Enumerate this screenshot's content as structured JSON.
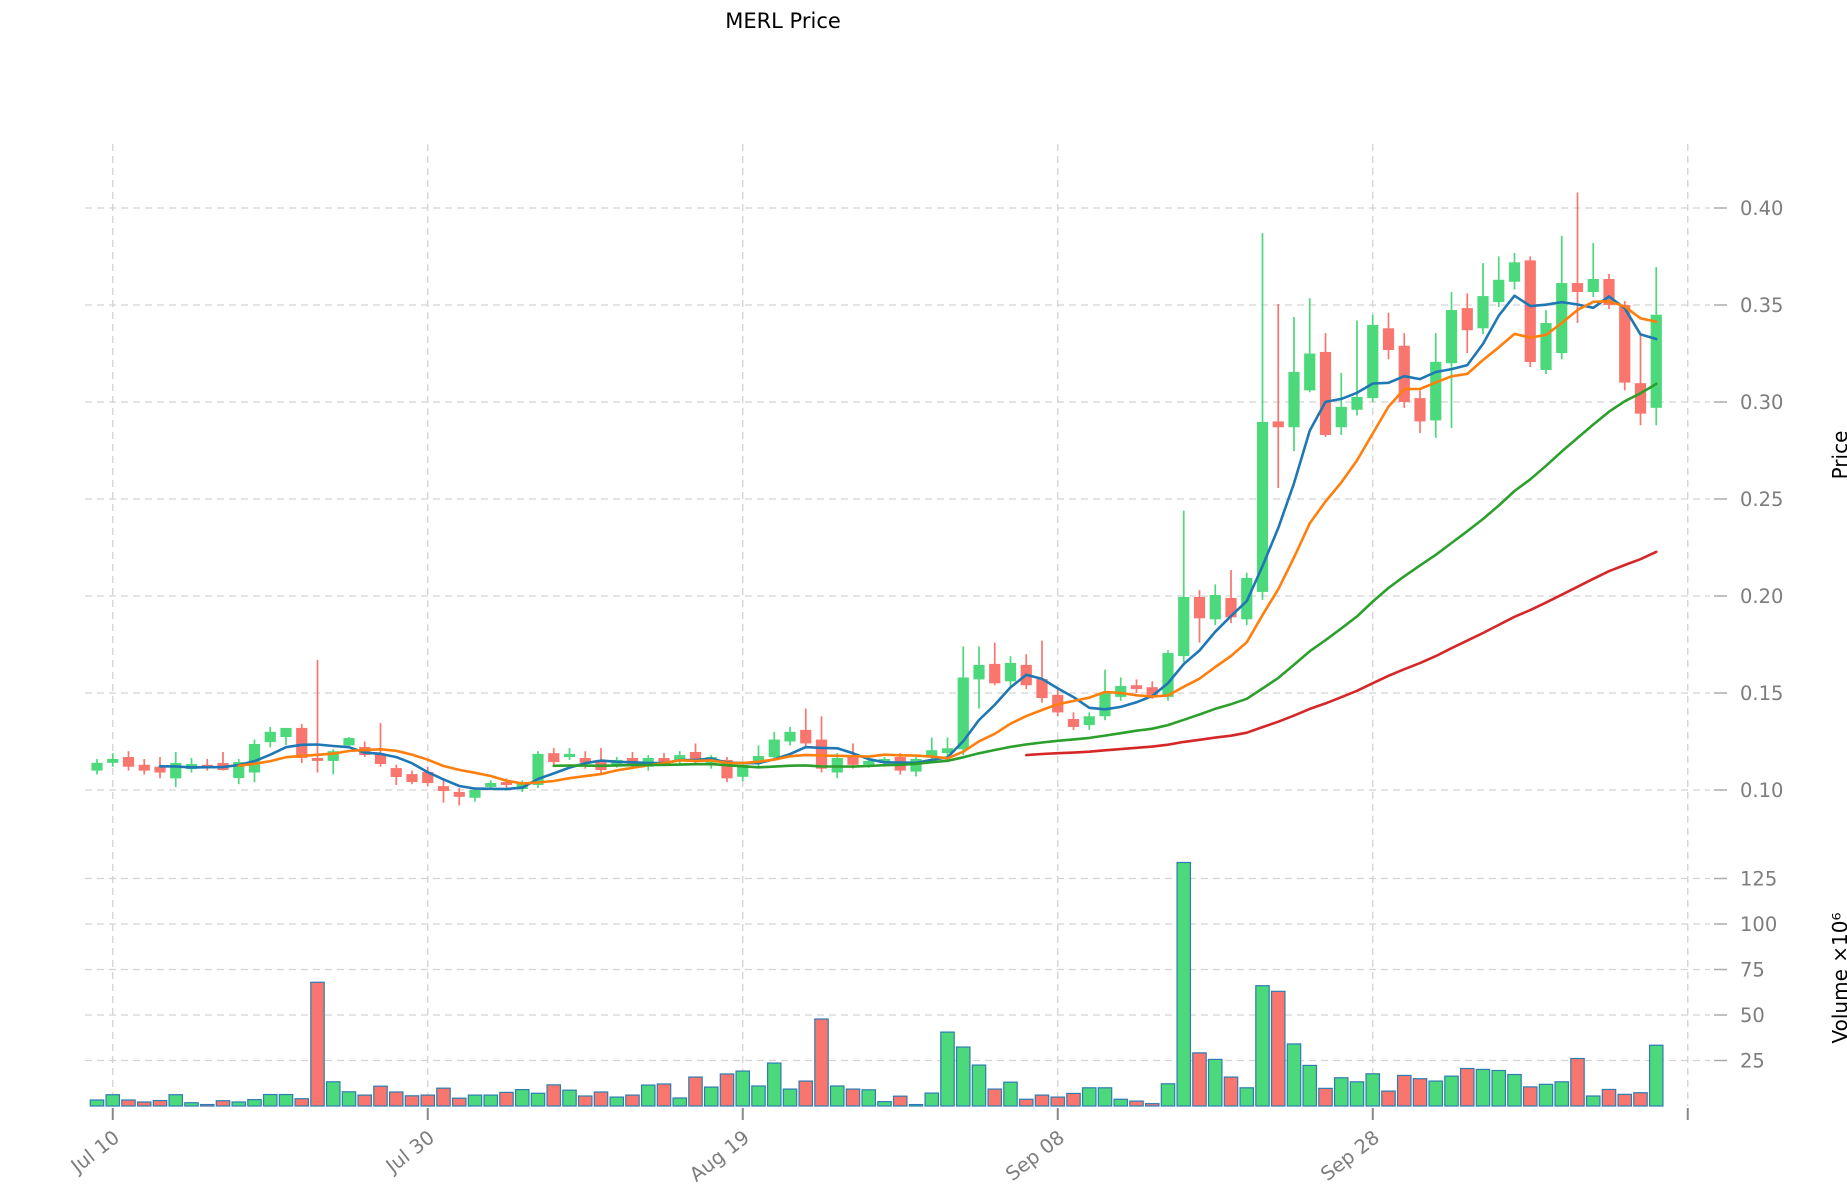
{
  "title": "MERL Price",
  "price_axis": {
    "label": "Price",
    "ticks": [
      0.1,
      0.15,
      0.2,
      0.25,
      0.3,
      0.35,
      0.4
    ],
    "tick_labels": [
      "0.10",
      "0.15",
      "0.20",
      "0.25",
      "0.30",
      "0.35",
      "0.40"
    ]
  },
  "volume_axis": {
    "label_full": "Volume ×10⁶",
    "ticks_millions": [
      25,
      50,
      75,
      100,
      125
    ],
    "tick_labels": [
      "25",
      "50",
      "75",
      "100",
      "125"
    ]
  },
  "x_axis": {
    "tick_labels": [
      "Jul 10",
      "Jul 30",
      "Aug 19",
      "Sep 08",
      "Sep 28"
    ],
    "tick_day_indices": [
      1,
      21,
      41,
      61,
      81
    ],
    "unlabeled_gridline_index": 101
  },
  "colors": {
    "up": "#4cd97b",
    "down": "#f8766d",
    "volume_edge": "#2d7db3",
    "grid": "#d3d3d3",
    "tick_text": "#7d7d7d",
    "ma": [
      "#1f77b4",
      "#ff7f0e",
      "#2ca02c",
      "#d62728"
    ]
  },
  "chart_data": {
    "type": "candlestick",
    "title": "MERL Price",
    "ylabel_price": "Price",
    "ylabel_volume": "Volume ×10⁶",
    "num_days": 100,
    "grid": "dashed",
    "legend": "none",
    "x_tick_labels": [
      "Jul 10",
      "Jul 30",
      "Aug 19",
      "Sep 08",
      "Sep 28"
    ],
    "price_ylim": [
      0.085,
      0.425
    ],
    "volume_ylim_millions": [
      0,
      140
    ],
    "moving_averages": [
      {
        "name": "SMA5",
        "window": 5,
        "color": "#1f77b4"
      },
      {
        "name": "SMA10",
        "window": 10,
        "color": "#ff7f0e"
      },
      {
        "name": "SMA30",
        "window": 30,
        "color": "#2ca02c"
      },
      {
        "name": "SMA60",
        "window": 60,
        "color": "#d62728"
      }
    ],
    "candles": {
      "open": [
        0.11,
        0.114,
        0.117,
        0.113,
        0.112,
        0.106,
        0.1108,
        0.113,
        0.1139,
        0.1062,
        0.109,
        0.1247,
        0.1273,
        0.132,
        0.1165,
        0.115,
        0.123,
        0.1222,
        0.1185,
        0.1113,
        0.1082,
        0.1093,
        0.102,
        0.099,
        0.096,
        0.1016,
        0.1041,
        0.1005,
        0.1026,
        0.119,
        0.117,
        0.1165,
        0.1155,
        0.113,
        0.1165,
        0.112,
        0.1165,
        0.1155,
        0.1196,
        0.114,
        0.1155,
        0.1068,
        0.1145,
        0.117,
        0.125,
        0.131,
        0.126,
        0.109,
        0.118,
        0.113,
        0.114,
        0.117,
        0.1095,
        0.117,
        0.119,
        0.121,
        0.157,
        0.165,
        0.156,
        0.1645,
        0.1572,
        0.149,
        0.1366,
        0.1335,
        0.138,
        0.148,
        0.154,
        0.153,
        0.148,
        0.169,
        0.1995,
        0.188,
        0.199,
        0.188,
        0.2021,
        0.29,
        0.287,
        0.306,
        0.3258,
        0.287,
        0.296,
        0.302,
        0.338,
        0.329,
        0.302,
        0.2905,
        0.32,
        0.3484,
        0.338,
        0.3515,
        0.362,
        0.373,
        0.3165,
        0.3252,
        0.3613,
        0.3567,
        0.3634,
        0.35,
        0.3097,
        0.297
      ],
      "high": [
        0.116,
        0.119,
        0.12,
        0.116,
        0.117,
        0.1196,
        0.1165,
        0.116,
        0.1196,
        0.116,
        0.126,
        0.1325,
        0.132,
        0.134,
        0.167,
        0.121,
        0.1273,
        0.125,
        0.1345,
        0.113,
        0.11,
        0.112,
        0.106,
        0.101,
        0.101,
        0.105,
        0.106,
        0.105,
        0.12,
        0.1216,
        0.1216,
        0.12,
        0.1216,
        0.117,
        0.1196,
        0.118,
        0.119,
        0.12,
        0.124,
        0.118,
        0.117,
        0.114,
        0.123,
        0.13,
        0.1325,
        0.142,
        0.138,
        0.119,
        0.124,
        0.116,
        0.117,
        0.119,
        0.117,
        0.127,
        0.127,
        0.174,
        0.174,
        0.176,
        0.169,
        0.17,
        0.177,
        0.153,
        0.14,
        0.14,
        0.162,
        0.158,
        0.157,
        0.156,
        0.172,
        0.244,
        0.203,
        0.206,
        0.2134,
        0.212,
        0.387,
        0.3505,
        0.3438,
        0.3535,
        0.3355,
        0.315,
        0.342,
        0.345,
        0.346,
        0.3355,
        0.306,
        0.3355,
        0.3567,
        0.356,
        0.3716,
        0.375,
        0.3768,
        0.375,
        0.3474,
        0.3856,
        0.408,
        0.382,
        0.366,
        0.352,
        0.3355,
        0.3695
      ],
      "low": [
        0.108,
        0.112,
        0.11,
        0.108,
        0.106,
        0.1015,
        0.109,
        0.11,
        0.11,
        0.103,
        0.104,
        0.122,
        0.1232,
        0.1139,
        0.109,
        0.108,
        0.1216,
        0.117,
        0.112,
        0.1026,
        0.103,
        0.102,
        0.0935,
        0.092,
        0.094,
        0.1,
        0.101,
        0.099,
        0.101,
        0.112,
        0.1155,
        0.111,
        0.108,
        0.1115,
        0.111,
        0.11,
        0.113,
        0.1135,
        0.1135,
        0.111,
        0.104,
        0.1045,
        0.112,
        0.115,
        0.123,
        0.122,
        0.109,
        0.106,
        0.111,
        0.1115,
        0.112,
        0.108,
        0.107,
        0.115,
        0.117,
        0.118,
        0.142,
        0.154,
        0.153,
        0.152,
        0.145,
        0.138,
        0.131,
        0.131,
        0.136,
        0.146,
        0.15,
        0.147,
        0.146,
        0.166,
        0.176,
        0.185,
        0.186,
        0.185,
        0.198,
        0.2557,
        0.2747,
        0.305,
        0.282,
        0.283,
        0.293,
        0.3,
        0.322,
        0.297,
        0.284,
        0.2815,
        0.2866,
        0.3252,
        0.335,
        0.349,
        0.358,
        0.318,
        0.3144,
        0.322,
        0.3407,
        0.354,
        0.348,
        0.306,
        0.288,
        0.288
      ],
      "close": [
        0.114,
        0.116,
        0.112,
        0.11,
        0.109,
        0.1139,
        0.1134,
        0.1125,
        0.1103,
        0.1144,
        0.1237,
        0.13,
        0.132,
        0.1165,
        0.115,
        0.12,
        0.1268,
        0.118,
        0.1134,
        0.1067,
        0.1041,
        0.1036,
        0.0995,
        0.0965,
        0.1,
        0.1036,
        0.1026,
        0.1036,
        0.1186,
        0.1144,
        0.1186,
        0.114,
        0.1103,
        0.1155,
        0.113,
        0.1165,
        0.114,
        0.118,
        0.1155,
        0.117,
        0.106,
        0.113,
        0.1175,
        0.126,
        0.13,
        0.124,
        0.111,
        0.1165,
        0.113,
        0.115,
        0.116,
        0.11,
        0.116,
        0.1205,
        0.1215,
        0.158,
        0.1645,
        0.155,
        0.1655,
        0.154,
        0.1474,
        0.14,
        0.1325,
        0.138,
        0.15,
        0.1536,
        0.152,
        0.149,
        0.1706,
        0.1995,
        0.1885,
        0.2005,
        0.189,
        0.2093,
        0.2897,
        0.287,
        0.3155,
        0.325,
        0.283,
        0.2975,
        0.3026,
        0.3397,
        0.3268,
        0.3,
        0.29,
        0.3207,
        0.3474,
        0.337,
        0.3546,
        0.363,
        0.372,
        0.3206,
        0.3407,
        0.3613,
        0.3567,
        0.3634,
        0.35,
        0.31,
        0.294,
        0.345
      ]
    },
    "volume_millions": [
      3.3,
      6.2,
      3.3,
      2.2,
      3.0,
      6.2,
      1.8,
      0.8,
      2.9,
      2.2,
      3.5,
      6.3,
      6.3,
      4.0,
      68.0,
      13.3,
      7.8,
      6.0,
      10.9,
      7.7,
      5.6,
      6.0,
      9.8,
      4.3,
      6.0,
      6.0,
      7.5,
      9.0,
      7.0,
      11.6,
      8.7,
      5.5,
      7.7,
      4.9,
      6.0,
      11.5,
      12.1,
      4.4,
      15.9,
      10.4,
      17.6,
      19.2,
      11.0,
      23.6,
      9.3,
      13.7,
      47.8,
      11.0,
      9.3,
      8.9,
      2.4,
      5.4,
      0.8,
      7.1,
      40.6,
      32.4,
      22.5,
      9.3,
      13.1,
      3.7,
      6.0,
      4.9,
      6.9,
      10.0,
      10.0,
      3.7,
      2.7,
      1.3,
      12.2,
      133.8,
      29.2,
      25.6,
      15.9,
      10.0,
      66.1,
      63.0,
      34.1,
      22.3,
      9.7,
      15.5,
      13.3,
      17.7,
      8.2,
      16.8,
      15.0,
      13.7,
      16.4,
      20.6,
      20.1,
      19.5,
      17.3,
      10.5,
      11.9,
      13.3,
      26.1,
      5.5,
      9.1,
      6.4,
      7.3,
      33.4
    ]
  }
}
